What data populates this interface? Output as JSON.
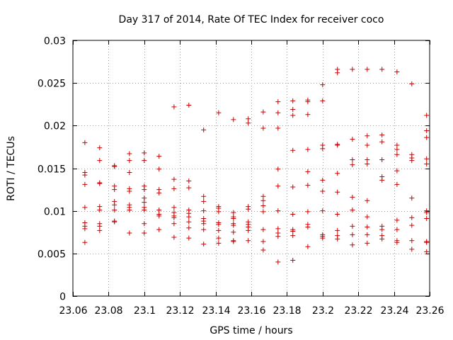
{
  "chart_data": {
    "type": "scatter",
    "title": "Day 317 of 2014, Rate Of TEC Index for receiver coco",
    "xlabel": "GPS time / hours",
    "ylabel": "ROTI / TECUs",
    "xlim": [
      23.06,
      23.26
    ],
    "ylim": [
      0,
      0.03
    ],
    "xticks": [
      "23.06",
      "23.08",
      "23.1",
      "23.12",
      "23.14",
      "23.16",
      "23.18",
      "23.2",
      "23.22",
      "23.24",
      "23.26"
    ],
    "yticks": [
      "0",
      "0.005",
      "0.01",
      "0.015",
      "0.02",
      "0.025",
      "0.03"
    ],
    "grid": true,
    "marker": "plus",
    "color": "#cc0000",
    "series": [
      {
        "name": "ROTI",
        "points": [
          [
            23.0667,
            0.018
          ],
          [
            23.0667,
            0.0145
          ],
          [
            23.0667,
            0.0142
          ],
          [
            23.0667,
            0.0131
          ],
          [
            23.0667,
            0.0104
          ],
          [
            23.0667,
            0.0086
          ],
          [
            23.0667,
            0.0082
          ],
          [
            23.0667,
            0.0079
          ],
          [
            23.0667,
            0.0063
          ],
          [
            23.075,
            0.0174
          ],
          [
            23.075,
            0.0159
          ],
          [
            23.075,
            0.0133
          ],
          [
            23.075,
            0.0132
          ],
          [
            23.075,
            0.0105
          ],
          [
            23.075,
            0.0101
          ],
          [
            23.075,
            0.0085
          ],
          [
            23.075,
            0.0082
          ],
          [
            23.075,
            0.0077
          ],
          [
            23.0833,
            0.0153
          ],
          [
            23.0833,
            0.0152
          ],
          [
            23.0833,
            0.0129
          ],
          [
            23.0833,
            0.0125
          ],
          [
            23.0833,
            0.0111
          ],
          [
            23.0833,
            0.0107
          ],
          [
            23.0833,
            0.0101
          ],
          [
            23.0833,
            0.0088
          ],
          [
            23.0833,
            0.0087
          ],
          [
            23.0917,
            0.0167
          ],
          [
            23.0917,
            0.0159
          ],
          [
            23.0917,
            0.0145
          ],
          [
            23.0917,
            0.0126
          ],
          [
            23.0917,
            0.0123
          ],
          [
            23.0917,
            0.0107
          ],
          [
            23.0917,
            0.0104
          ],
          [
            23.0917,
            0.0101
          ],
          [
            23.0917,
            0.0074
          ],
          [
            23.1,
            0.0168
          ],
          [
            23.1,
            0.0159
          ],
          [
            23.1,
            0.0129
          ],
          [
            23.1,
            0.0125
          ],
          [
            23.1,
            0.0115
          ],
          [
            23.1,
            0.011
          ],
          [
            23.1,
            0.0104
          ],
          [
            23.1,
            0.0101
          ],
          [
            23.1,
            0.0085
          ],
          [
            23.1,
            0.0074
          ],
          [
            23.1083,
            0.0164
          ],
          [
            23.1083,
            0.0149
          ],
          [
            23.1083,
            0.0125
          ],
          [
            23.1083,
            0.0121
          ],
          [
            23.1083,
            0.0101
          ],
          [
            23.1083,
            0.0096
          ],
          [
            23.1083,
            0.0094
          ],
          [
            23.1083,
            0.0078
          ],
          [
            23.1167,
            0.0222
          ],
          [
            23.1167,
            0.0137
          ],
          [
            23.1167,
            0.0126
          ],
          [
            23.1167,
            0.0104
          ],
          [
            23.1167,
            0.0098
          ],
          [
            23.1167,
            0.0094
          ],
          [
            23.1167,
            0.0092
          ],
          [
            23.1167,
            0.0085
          ],
          [
            23.1167,
            0.0069
          ],
          [
            23.125,
            0.0224
          ],
          [
            23.125,
            0.0135
          ],
          [
            23.125,
            0.0127
          ],
          [
            23.125,
            0.0101
          ],
          [
            23.125,
            0.0097
          ],
          [
            23.125,
            0.0093
          ],
          [
            23.125,
            0.0087
          ],
          [
            23.125,
            0.008
          ],
          [
            23.125,
            0.0068
          ],
          [
            23.1333,
            0.0195
          ],
          [
            23.1333,
            0.0117
          ],
          [
            23.1333,
            0.0111
          ],
          [
            23.1333,
            0.01
          ],
          [
            23.1333,
            0.0091
          ],
          [
            23.1333,
            0.0088
          ],
          [
            23.1333,
            0.0085
          ],
          [
            23.1333,
            0.0078
          ],
          [
            23.1333,
            0.0061
          ],
          [
            23.1417,
            0.0215
          ],
          [
            23.1417,
            0.0105
          ],
          [
            23.1417,
            0.0103
          ],
          [
            23.1417,
            0.0099
          ],
          [
            23.1417,
            0.0086
          ],
          [
            23.1417,
            0.0084
          ],
          [
            23.1417,
            0.0077
          ],
          [
            23.1417,
            0.0068
          ],
          [
            23.1417,
            0.0062
          ],
          [
            23.15,
            0.0207
          ],
          [
            23.15,
            0.0098
          ],
          [
            23.15,
            0.0093
          ],
          [
            23.15,
            0.0091
          ],
          [
            23.15,
            0.0085
          ],
          [
            23.15,
            0.0083
          ],
          [
            23.15,
            0.0075
          ],
          [
            23.15,
            0.0065
          ],
          [
            23.15,
            0.0064
          ],
          [
            23.1583,
            0.0208
          ],
          [
            23.1583,
            0.0203
          ],
          [
            23.1583,
            0.0105
          ],
          [
            23.1583,
            0.0102
          ],
          [
            23.1583,
            0.0087
          ],
          [
            23.1583,
            0.0084
          ],
          [
            23.1583,
            0.0081
          ],
          [
            23.1583,
            0.0077
          ],
          [
            23.1583,
            0.0065
          ],
          [
            23.1667,
            0.0216
          ],
          [
            23.1667,
            0.0197
          ],
          [
            23.1667,
            0.0117
          ],
          [
            23.1667,
            0.0112
          ],
          [
            23.1667,
            0.0106
          ],
          [
            23.1667,
            0.0099
          ],
          [
            23.1667,
            0.0078
          ],
          [
            23.1667,
            0.0064
          ],
          [
            23.1667,
            0.0054
          ],
          [
            23.175,
            0.0228
          ],
          [
            23.175,
            0.0215
          ],
          [
            23.175,
            0.0197
          ],
          [
            23.175,
            0.0149
          ],
          [
            23.175,
            0.0129
          ],
          [
            23.175,
            0.01
          ],
          [
            23.175,
            0.0079
          ],
          [
            23.175,
            0.0074
          ],
          [
            23.175,
            0.007
          ],
          [
            23.175,
            0.004
          ],
          [
            23.1833,
            0.0229
          ],
          [
            23.1833,
            0.0219
          ],
          [
            23.1833,
            0.0212
          ],
          [
            23.1833,
            0.0171
          ],
          [
            23.1833,
            0.0128
          ],
          [
            23.1833,
            0.0096
          ],
          [
            23.1833,
            0.0078
          ],
          [
            23.1833,
            0.0076
          ],
          [
            23.1833,
            0.0071
          ],
          [
            23.1833,
            0.0042
          ],
          [
            23.1917,
            0.023
          ],
          [
            23.1917,
            0.0228
          ],
          [
            23.1917,
            0.0213
          ],
          [
            23.1917,
            0.0172
          ],
          [
            23.1917,
            0.0146
          ],
          [
            23.1917,
            0.013
          ],
          [
            23.1917,
            0.0099
          ],
          [
            23.1917,
            0.0084
          ],
          [
            23.1917,
            0.0081
          ],
          [
            23.1917,
            0.0058
          ],
          [
            23.2,
            0.0248
          ],
          [
            23.2,
            0.0229
          ],
          [
            23.2,
            0.0177
          ],
          [
            23.2,
            0.0173
          ],
          [
            23.2,
            0.0136
          ],
          [
            23.2,
            0.0123
          ],
          [
            23.2,
            0.01
          ],
          [
            23.2,
            0.0072
          ],
          [
            23.2,
            0.007
          ],
          [
            23.2,
            0.0068
          ],
          [
            23.2083,
            0.0266
          ],
          [
            23.2083,
            0.0262
          ],
          [
            23.2083,
            0.0178
          ],
          [
            23.2083,
            0.0177
          ],
          [
            23.2083,
            0.0144
          ],
          [
            23.2083,
            0.0122
          ],
          [
            23.2083,
            0.0096
          ],
          [
            23.2083,
            0.0077
          ],
          [
            23.2083,
            0.0071
          ],
          [
            23.2083,
            0.0067
          ],
          [
            23.2167,
            0.0266
          ],
          [
            23.2167,
            0.0184
          ],
          [
            23.2167,
            0.016
          ],
          [
            23.2167,
            0.0154
          ],
          [
            23.2167,
            0.0116
          ],
          [
            23.2167,
            0.0101
          ],
          [
            23.2167,
            0.0082
          ],
          [
            23.2167,
            0.0072
          ],
          [
            23.2167,
            0.006
          ],
          [
            23.225,
            0.0266
          ],
          [
            23.225,
            0.0188
          ],
          [
            23.225,
            0.0177
          ],
          [
            23.225,
            0.016
          ],
          [
            23.225,
            0.0155
          ],
          [
            23.225,
            0.0112
          ],
          [
            23.225,
            0.0093
          ],
          [
            23.225,
            0.0081
          ],
          [
            23.225,
            0.0072
          ],
          [
            23.225,
            0.0062
          ],
          [
            23.2333,
            0.0266
          ],
          [
            23.2333,
            0.0189
          ],
          [
            23.2333,
            0.0181
          ],
          [
            23.2333,
            0.016
          ],
          [
            23.2333,
            0.014
          ],
          [
            23.2333,
            0.0136
          ],
          [
            23.2333,
            0.0082
          ],
          [
            23.2333,
            0.0078
          ],
          [
            23.2333,
            0.0071
          ],
          [
            23.2333,
            0.0067
          ],
          [
            23.2417,
            0.0263
          ],
          [
            23.2417,
            0.0177
          ],
          [
            23.2417,
            0.0172
          ],
          [
            23.2417,
            0.0166
          ],
          [
            23.2417,
            0.0147
          ],
          [
            23.2417,
            0.0131
          ],
          [
            23.2417,
            0.0089
          ],
          [
            23.2417,
            0.0078
          ],
          [
            23.2417,
            0.0065
          ],
          [
            23.2417,
            0.0063
          ],
          [
            23.25,
            0.0249
          ],
          [
            23.25,
            0.0166
          ],
          [
            23.25,
            0.0162
          ],
          [
            23.25,
            0.0159
          ],
          [
            23.25,
            0.0115
          ],
          [
            23.25,
            0.0092
          ],
          [
            23.25,
            0.0083
          ],
          [
            23.25,
            0.0065
          ],
          [
            23.25,
            0.0055
          ],
          [
            23.2583,
            0.0212
          ],
          [
            23.2583,
            0.0194
          ],
          [
            23.2583,
            0.0186
          ],
          [
            23.2583,
            0.0161
          ],
          [
            23.2583,
            0.0155
          ],
          [
            23.2583,
            0.01
          ],
          [
            23.2583,
            0.0098
          ],
          [
            23.2583,
            0.0091
          ],
          [
            23.2583,
            0.0064
          ],
          [
            23.2583,
            0.0063
          ],
          [
            23.2583,
            0.0052
          ]
        ]
      }
    ]
  }
}
